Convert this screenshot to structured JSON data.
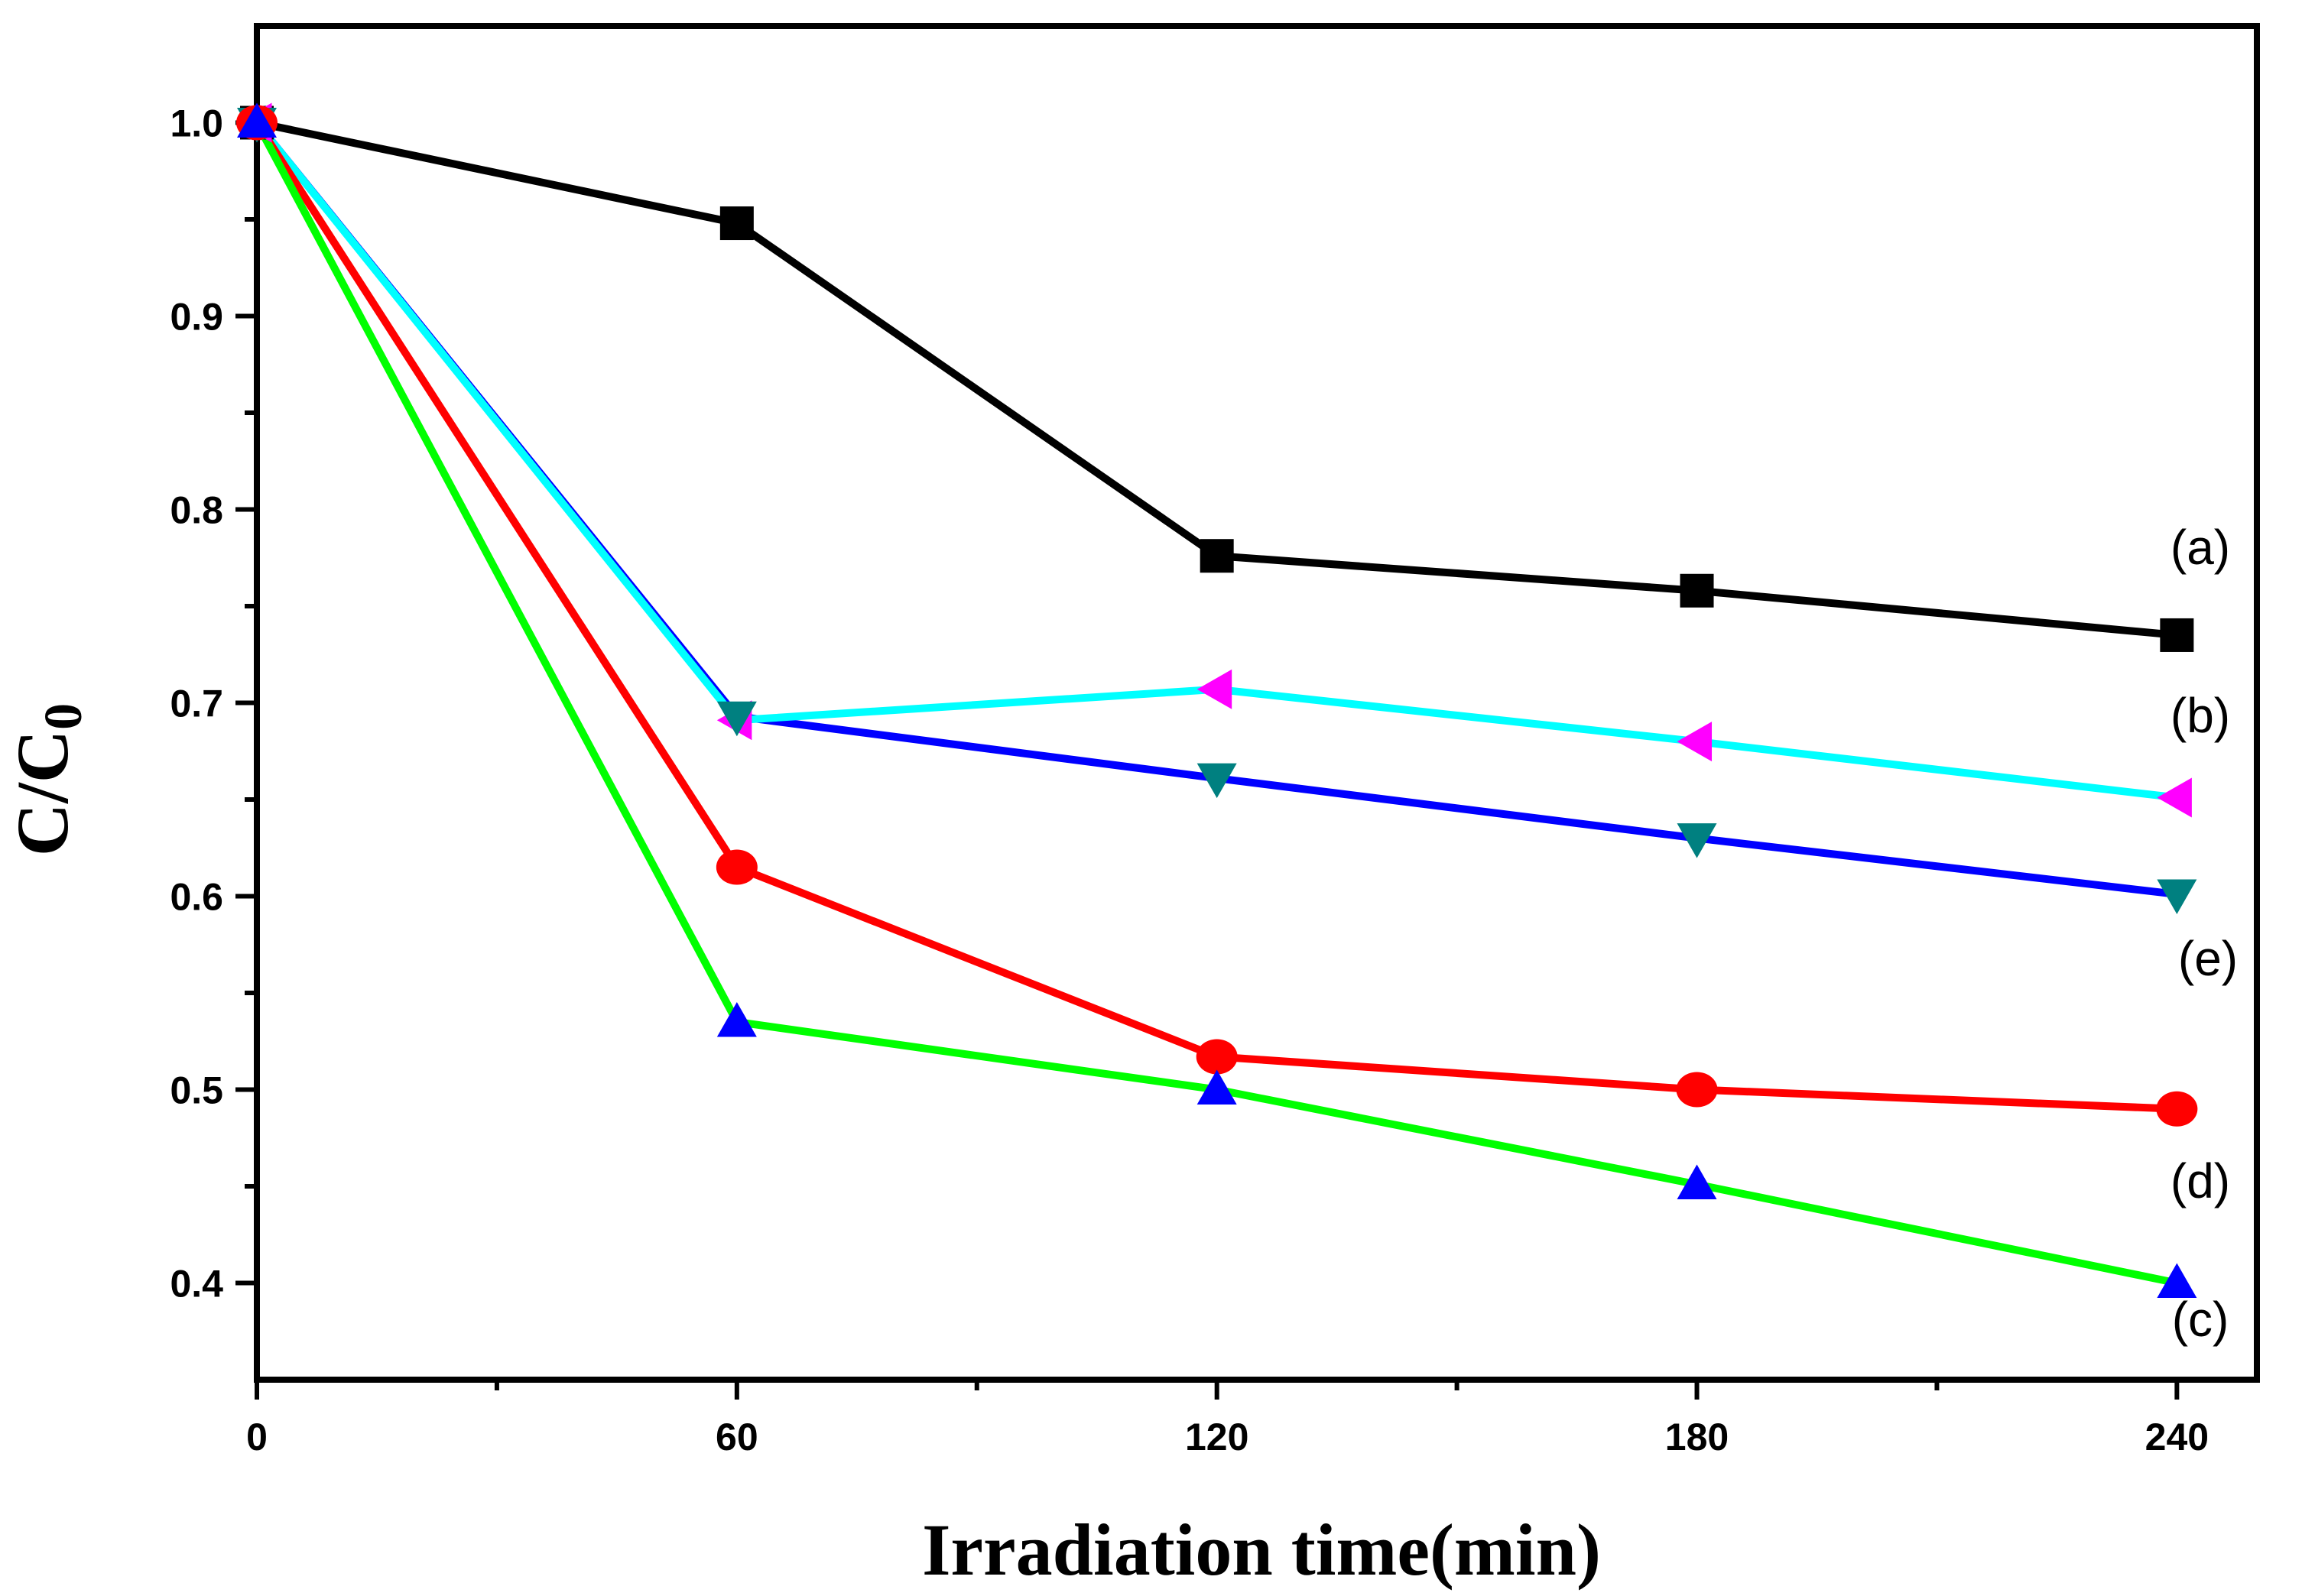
{
  "chart_data": {
    "type": "line",
    "title": "",
    "xlabel": "Irradiation time(min)",
    "ylabel": "C/C0",
    "ylabel_main": "C/C",
    "ylabel_sub": "0",
    "xlim": [
      0,
      250
    ],
    "ylim": [
      0.35,
      1.05
    ],
    "xticks": [
      0,
      60,
      120,
      180,
      240
    ],
    "xtick_labels": [
      "0",
      "60",
      "120",
      "180",
      "240"
    ],
    "xminor": [
      30,
      90,
      150,
      210
    ],
    "yticks": [
      0.4,
      0.5,
      0.6,
      0.7,
      0.8,
      0.9,
      1.0
    ],
    "ytick_labels": [
      "0.4",
      "0.5",
      "0.6",
      "0.7",
      "0.8",
      "0.9",
      "1.0"
    ],
    "yminor": [
      0.45,
      0.55,
      0.65,
      0.75,
      0.85,
      0.95
    ],
    "grid": false,
    "x": [
      0,
      60,
      120,
      180,
      240
    ],
    "series": [
      {
        "name": "(a)",
        "values": [
          1.0,
          0.948,
          0.776,
          0.758,
          0.735
        ],
        "line_color": "#000000",
        "marker": "square",
        "marker_color": "#000000"
      },
      {
        "name": "(b)",
        "values": [
          1.0,
          0.691,
          0.707,
          0.68,
          0.651
        ],
        "line_color": "#00ffff",
        "marker": "triangle-left",
        "marker_color": "#ff00ff"
      },
      {
        "name": "(e)",
        "values": [
          1.0,
          0.693,
          0.661,
          0.63,
          0.601
        ],
        "line_color": "#0000ff",
        "marker": "triangle-down",
        "marker_color": "#008080"
      },
      {
        "name": "(d)",
        "values": [
          1.0,
          0.615,
          0.517,
          0.5,
          0.49
        ],
        "line_color": "#ff0000",
        "marker": "circle",
        "marker_color": "#ff0000"
      },
      {
        "name": "(c)",
        "values": [
          1.0,
          0.535,
          0.5,
          0.451,
          0.4
        ],
        "line_color": "#00ff00",
        "marker": "triangle-up",
        "marker_color": "#0000ff"
      }
    ]
  }
}
